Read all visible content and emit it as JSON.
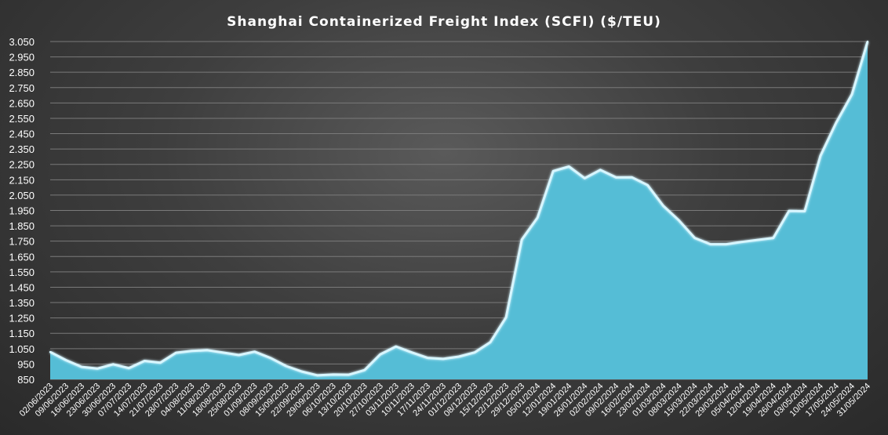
{
  "chart_data": {
    "type": "area",
    "title": "Shanghai Containerized Freight Index (SCFI) ($/TEU)",
    "xlabel": "",
    "ylabel": "",
    "ylim": [
      850,
      3050
    ],
    "yticks": [
      "850",
      "950",
      "1.050",
      "1.150",
      "1.250",
      "1.350",
      "1.450",
      "1.550",
      "1.650",
      "1.750",
      "1.850",
      "1.950",
      "2.050",
      "2.150",
      "2.250",
      "2.350",
      "2.450",
      "2.550",
      "2.650",
      "2.750",
      "2.850",
      "2.950",
      "3.050"
    ],
    "grid": true,
    "legend": "none",
    "x": [
      "02/06/2023",
      "09/06/2023",
      "16/06/2023",
      "23/06/2023",
      "30/06/2023",
      "07/07/2023",
      "14/07/2023",
      "21/07/2023",
      "28/07/2023",
      "04/08/2023",
      "11/08/2023",
      "18/08/2023",
      "25/08/2023",
      "01/09/2023",
      "08/09/2023",
      "15/09/2023",
      "22/09/2023",
      "29/09/2023",
      "06/10/2023",
      "13/10/2023",
      "20/10/2023",
      "27/10/2023",
      "03/11/2023",
      "10/11/2023",
      "17/11/2023",
      "24/11/2023",
      "01/12/2023",
      "08/12/2023",
      "15/12/2023",
      "22/12/2023",
      "29/12/2023",
      "05/01/2024",
      "12/01/2024",
      "19/01/2024",
      "26/01/2024",
      "02/02/2024",
      "09/02/2024",
      "16/02/2024",
      "23/02/2024",
      "01/03/2024",
      "08/03/2024",
      "15/03/2024",
      "22/03/2024",
      "29/03/2024",
      "05/04/2024",
      "12/04/2024",
      "19/04/2024",
      "26/04/2024",
      "03/05/2024",
      "10/05/2024",
      "17/05/2024",
      "24/05/2024",
      "31/05/2024"
    ],
    "series": [
      {
        "values": [
          1028,
          975,
          931,
          920,
          948,
          923,
          970,
          958,
          1023,
          1035,
          1040,
          1024,
          1008,
          1030,
          990,
          937,
          901,
          876,
          881,
          880,
          910,
          1013,
          1064,
          1025,
          990,
          983,
          998,
          1025,
          1092,
          1254,
          1760,
          1903,
          2206,
          2236,
          2160,
          2214,
          2165,
          2166,
          2115,
          1980,
          1885,
          1771,
          1730,
          1730,
          1745,
          1758,
          1771,
          1947,
          1945,
          2306,
          2521,
          2706,
          3050
        ]
      }
    ],
    "colors": {
      "area_fill": "#55bdd6",
      "area_stroke": "#d8f6ff",
      "grid": "#7a7a7a",
      "text": "#ffffff"
    }
  }
}
